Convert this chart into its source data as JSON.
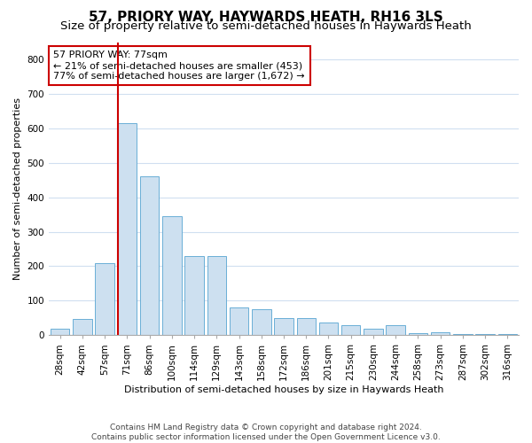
{
  "title": "57, PRIORY WAY, HAYWARDS HEATH, RH16 3LS",
  "subtitle": "Size of property relative to semi-detached houses in Haywards Heath",
  "xlabel": "Distribution of semi-detached houses by size in Haywards Heath",
  "ylabel": "Number of semi-detached properties",
  "footnote1": "Contains HM Land Registry data © Crown copyright and database right 2024.",
  "footnote2": "Contains public sector information licensed under the Open Government Licence v3.0.",
  "property_label": "57 PRIORY WAY: 77sqm",
  "annotation_line1": "← 21% of semi-detached houses are smaller (453)",
  "annotation_line2": "77% of semi-detached houses are larger (1,672) →",
  "categories": [
    "28sqm",
    "42sqm",
    "57sqm",
    "71sqm",
    "86sqm",
    "100sqm",
    "114sqm",
    "129sqm",
    "143sqm",
    "158sqm",
    "172sqm",
    "186sqm",
    "201sqm",
    "215sqm",
    "230sqm",
    "244sqm",
    "258sqm",
    "273sqm",
    "287sqm",
    "302sqm",
    "316sqm"
  ],
  "values": [
    18,
    48,
    210,
    615,
    460,
    345,
    230,
    230,
    80,
    75,
    50,
    50,
    38,
    28,
    20,
    28,
    5,
    8,
    3,
    4,
    3
  ],
  "bar_color": "#cde0f0",
  "bar_edge_color": "#6aaed6",
  "redline_color": "#cc0000",
  "annotation_box_color": "#ffffff",
  "annotation_box_edge": "#cc0000",
  "background_color": "#ffffff",
  "grid_color": "#d0dff0",
  "ylim": [
    0,
    850
  ],
  "yticks": [
    0,
    100,
    200,
    300,
    400,
    500,
    600,
    700,
    800
  ],
  "title_fontsize": 11,
  "subtitle_fontsize": 9.5,
  "axis_label_fontsize": 8,
  "tick_fontsize": 7.5,
  "annotation_fontsize": 8
}
